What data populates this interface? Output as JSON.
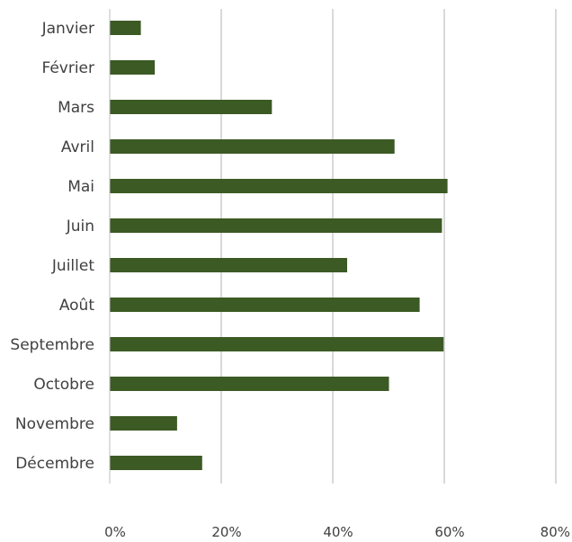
{
  "chart_data": {
    "type": "bar",
    "orientation": "horizontal",
    "title": "",
    "xlabel": "",
    "ylabel": "",
    "categories": [
      "Janvier",
      "Février",
      "Mars",
      "Avril",
      "Mai",
      "Juin",
      "Juillet",
      "Août",
      "Septembre",
      "Octobre",
      "Novembre",
      "Décembre"
    ],
    "values": [
      0.055,
      0.08,
      0.29,
      0.51,
      0.605,
      0.595,
      0.425,
      0.555,
      0.598,
      0.5,
      0.12,
      0.165
    ],
    "xlim": [
      0,
      0.8
    ],
    "x_ticks": [
      0,
      0.2,
      0.4,
      0.6,
      0.8
    ],
    "x_tick_labels": [
      "0%",
      "20%",
      "40%",
      "60%",
      "80%"
    ],
    "grid": "vertical",
    "legend": "none",
    "colors": {
      "bar": "#3c5a24",
      "grid": "#d9d9d9",
      "axis": "#bfbfbf",
      "text": "#404040"
    }
  }
}
